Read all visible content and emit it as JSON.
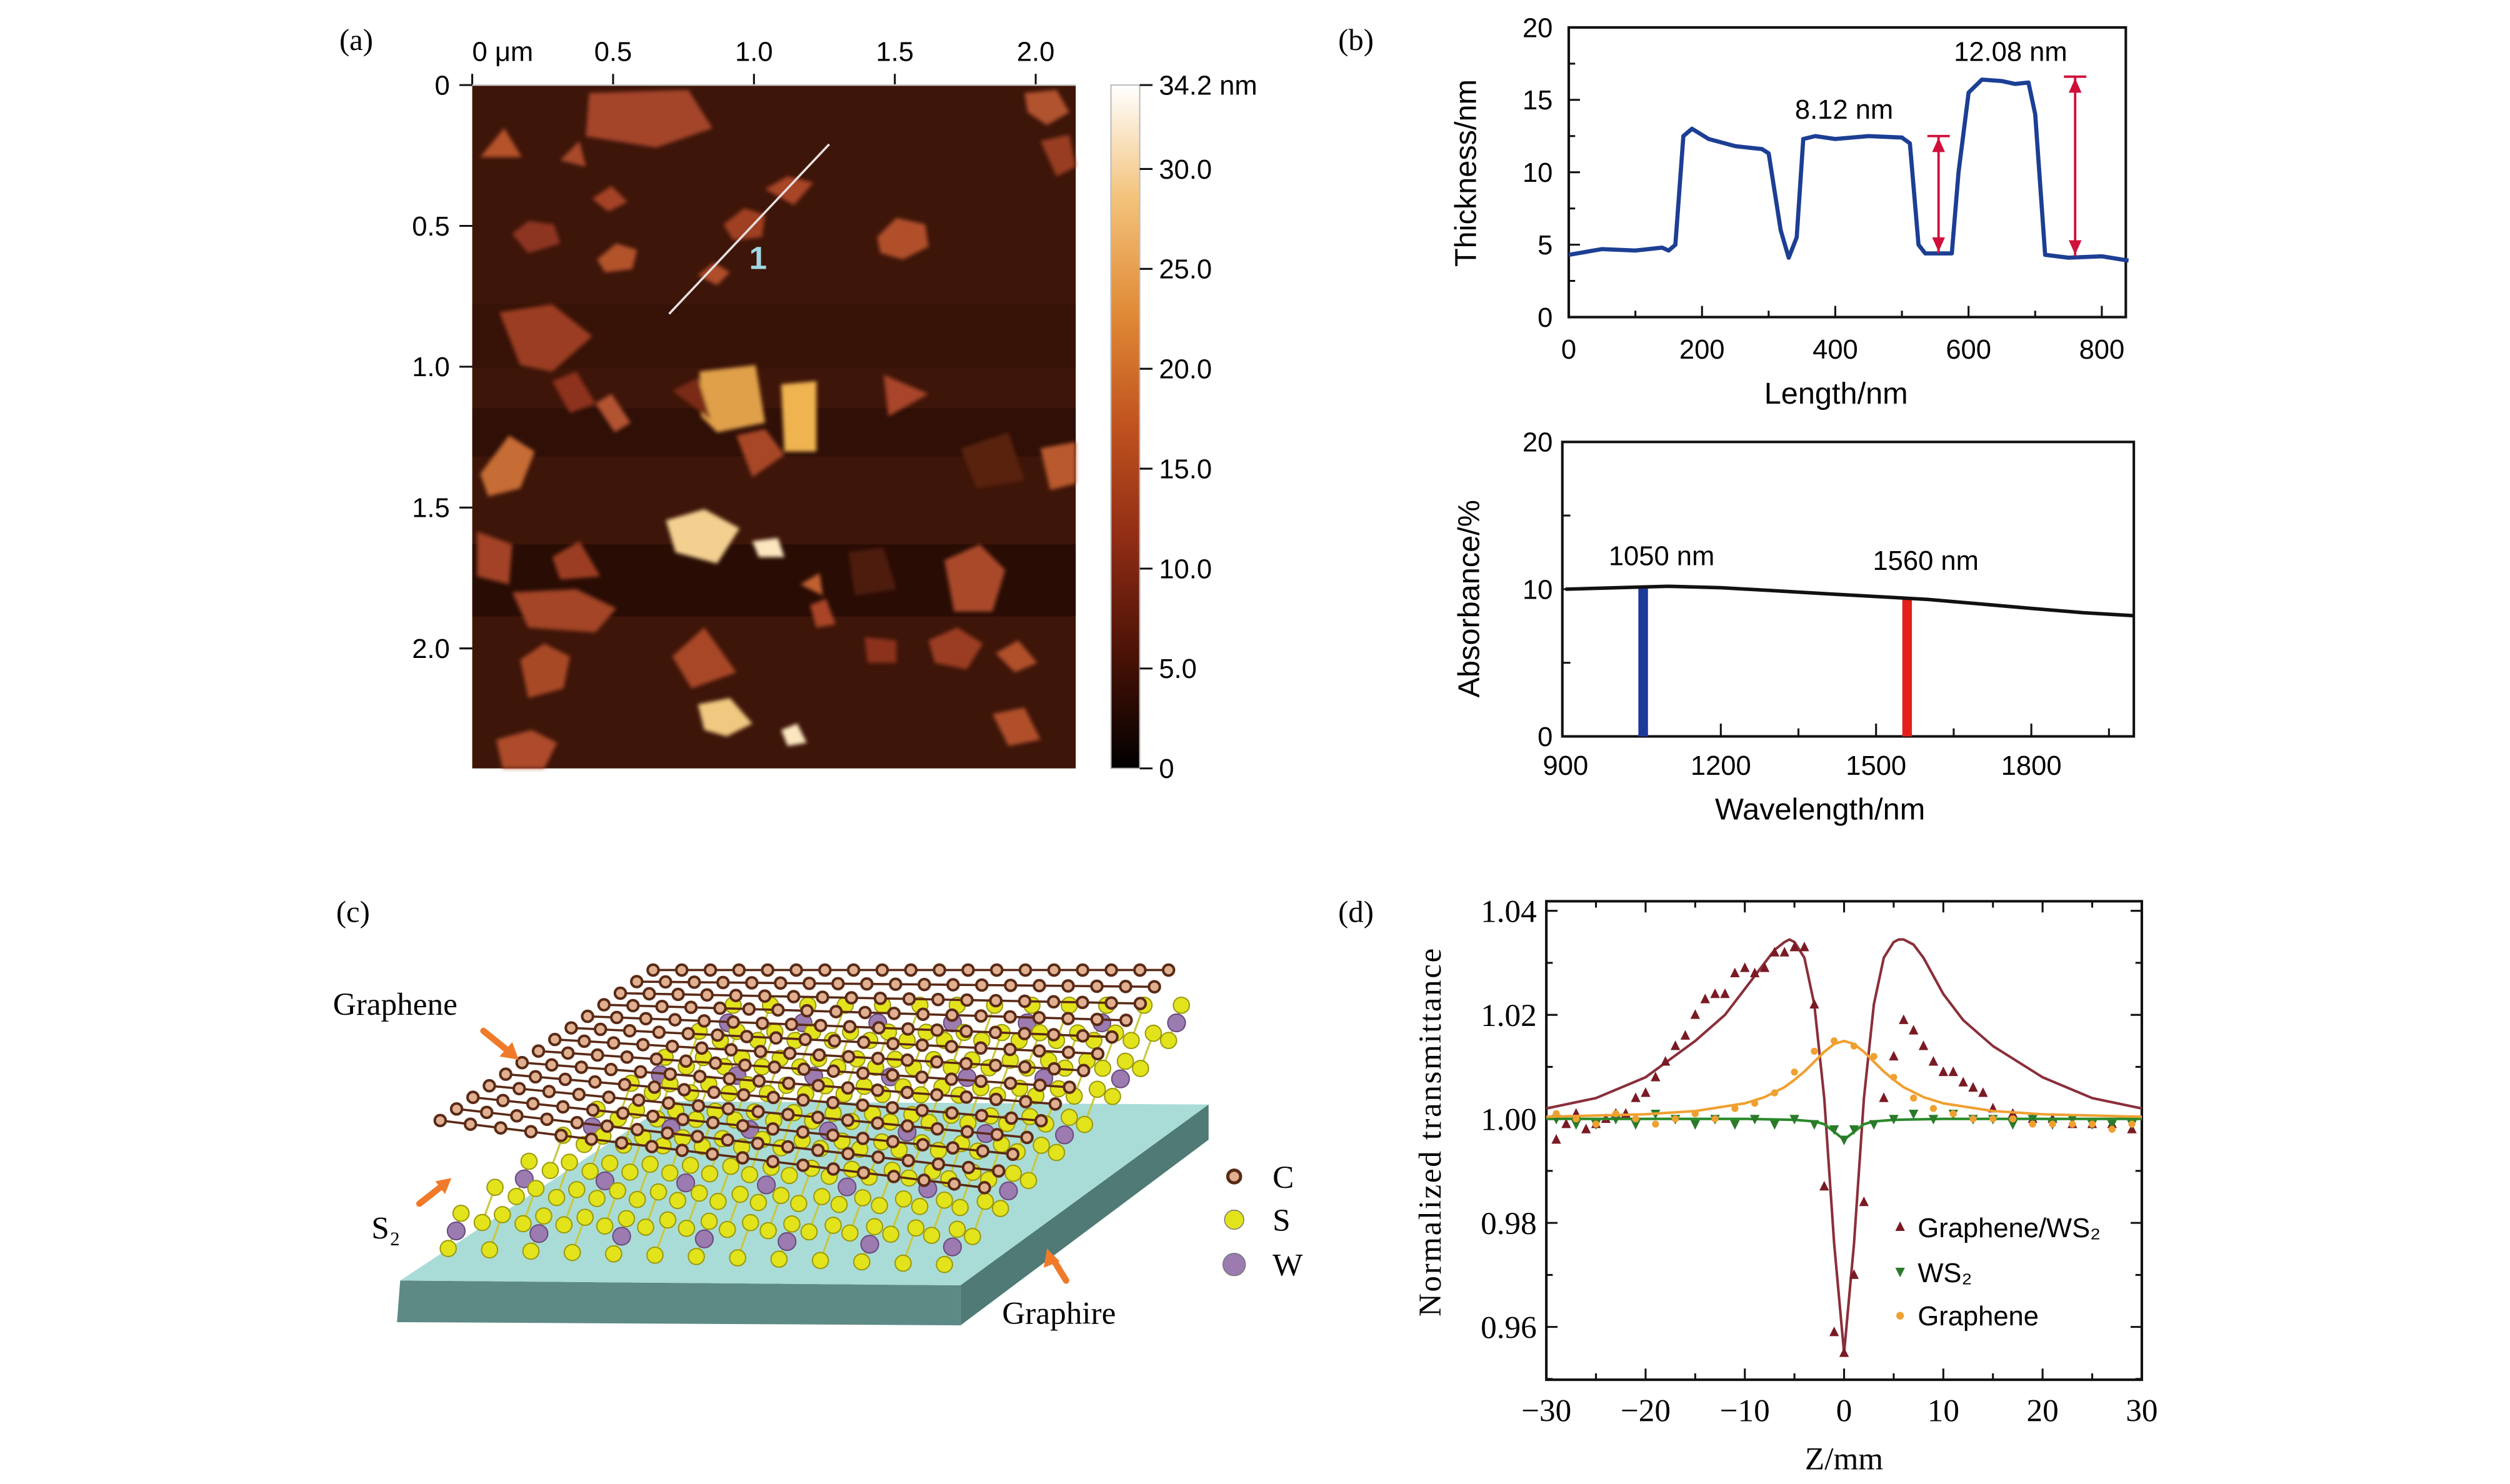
{
  "panels": {
    "a": {
      "label": "(a)",
      "x_ticks": [
        "0 μm",
        "0.5",
        "1.0",
        "1.5",
        "2.0"
      ],
      "y_ticks": [
        "0",
        "0.5",
        "1.0",
        "1.5",
        "2.0"
      ],
      "line_marker": "1",
      "colorbar": {
        "ticks": [
          "34.2 nm",
          "30.0",
          "25.0",
          "20.0",
          "15.0",
          "10.0",
          "5.0",
          "0"
        ],
        "colors": [
          "#000000",
          "#4a1206",
          "#8f2c14",
          "#c0521f",
          "#e08a36",
          "#f3c27a",
          "#ffffff"
        ]
      }
    },
    "b": {
      "label": "(b)"
    },
    "c": {
      "label": "(c)",
      "labels": {
        "graphene": "Graphene",
        "s2": "S₂",
        "substrate": "Graphire"
      },
      "legend": [
        {
          "symbol": "C",
          "color": "#5a2a16"
        },
        {
          "symbol": "S",
          "color": "#e3e31c"
        },
        {
          "symbol": "W",
          "color": "#9b7bb0"
        }
      ],
      "colors": {
        "substrate_top": "#a9dcd6",
        "substrate_side": "#5e8a86",
        "arrow": "#f07a2a"
      }
    },
    "d": {
      "label": "(d)"
    }
  },
  "chart_data": [
    {
      "type": "line",
      "panel": "b-top",
      "xlabel": "Length/nm",
      "ylabel": "Thickness/nm",
      "xlim": [
        0,
        840
      ],
      "ylim": [
        0,
        20
      ],
      "x_ticks": [
        0,
        200,
        400,
        600,
        800
      ],
      "y_ticks": [
        0,
        5,
        10,
        15,
        20
      ],
      "line_color": "#1c3f94",
      "x": [
        0,
        50,
        100,
        140,
        150,
        160,
        172,
        185,
        210,
        250,
        290,
        300,
        318,
        330,
        342,
        352,
        370,
        400,
        450,
        500,
        512,
        525,
        535,
        575,
        585,
        600,
        620,
        650,
        670,
        690,
        700,
        715,
        750,
        800,
        840
      ],
      "y": [
        4.3,
        4.7,
        4.6,
        4.8,
        4.6,
        5.0,
        12.5,
        13.0,
        12.3,
        11.8,
        11.6,
        11.3,
        6.0,
        4.1,
        5.5,
        12.3,
        12.5,
        12.3,
        12.5,
        12.4,
        12.0,
        5.0,
        4.4,
        4.4,
        10.0,
        15.5,
        16.4,
        16.3,
        16.1,
        16.2,
        14.0,
        4.3,
        4.1,
        4.2,
        3.9
      ],
      "annotations": [
        {
          "text": "8.12 nm",
          "x": 555,
          "y_from": 4.4,
          "y_to": 12.5
        },
        {
          "text": "12.08 nm",
          "x": 760,
          "y_from": 4.2,
          "y_to": 16.6
        }
      ],
      "annotation_color": "#d0103a"
    },
    {
      "type": "line",
      "panel": "b-bottom",
      "xlabel": "Wavelength/nm",
      "ylabel": "Absorbance/%",
      "xlim": [
        900,
        2000
      ],
      "ylim": [
        0,
        20
      ],
      "x_ticks": [
        900,
        1200,
        1500,
        1800
      ],
      "y_ticks": [
        0,
        10,
        20
      ],
      "x": [
        900,
        1000,
        1100,
        1200,
        1300,
        1400,
        1500,
        1600,
        1700,
        1800,
        1900,
        2000
      ],
      "y": [
        10.0,
        10.1,
        10.2,
        10.1,
        9.9,
        9.7,
        9.5,
        9.3,
        9.0,
        8.7,
        8.4,
        8.2
      ],
      "markers": [
        {
          "text": "1050 nm",
          "x": 1050,
          "y": 10.2,
          "color": "#1b3a9a"
        },
        {
          "text": "1560 nm",
          "x": 1560,
          "y": 9.4,
          "color": "#e3201b"
        }
      ]
    },
    {
      "type": "scatter",
      "panel": "d",
      "xlabel": "Z/mm",
      "ylabel": "Normalized transmittance",
      "xlim": [
        -30,
        30
      ],
      "ylim": [
        0.95,
        1.042
      ],
      "x_ticks": [
        -30,
        -20,
        -10,
        0,
        10,
        20,
        30
      ],
      "x_tick_labels": [
        "−30",
        "−20",
        "−10",
        "0",
        "10",
        "20",
        "30"
      ],
      "y_ticks": [
        0.96,
        0.98,
        1.0,
        1.02,
        1.04
      ],
      "y_tick_labels": [
        "0.96",
        "0.98",
        "1.00",
        "1.02",
        "1.04"
      ],
      "legend_position": "bottom-right",
      "series": [
        {
          "name": "Graphene/WS₂",
          "marker": "triangle-up",
          "color": "#7a1a24",
          "x": [
            -29,
            -28,
            -27,
            -26,
            -25,
            -24,
            -23,
            -22,
            -21,
            -20,
            -19,
            -18,
            -17,
            -16,
            -15,
            -14,
            -13,
            -12,
            -11,
            -10,
            -9,
            -8,
            -7,
            -6,
            -5,
            -4,
            -3,
            -2,
            -1,
            0,
            1,
            2,
            4,
            5,
            6,
            7,
            8,
            9,
            10,
            11,
            12,
            13,
            14,
            15,
            17,
            19,
            21,
            23,
            25,
            27,
            29
          ],
          "y": [
            0.996,
            0.999,
            1.001,
            0.998,
            0.999,
            1.0,
            1.001,
            1.001,
            1.004,
            1.005,
            1.008,
            1.011,
            1.014,
            1.016,
            1.02,
            1.023,
            1.024,
            1.024,
            1.028,
            1.029,
            1.028,
            1.029,
            1.032,
            1.032,
            1.033,
            1.033,
            1.022,
            0.987,
            0.959,
            0.955,
            0.97,
            0.984,
            1.004,
            1.012,
            1.019,
            1.017,
            1.014,
            1.011,
            1.009,
            1.009,
            1.007,
            1.006,
            1.005,
            1.002,
            1.001,
            1.0,
            1.0,
            0.999,
            0.999,
            0.999,
            0.998
          ],
          "fit_x": [
            -30,
            -25,
            -20,
            -15,
            -12,
            -10,
            -8,
            -7,
            -6,
            -5.5,
            -5,
            -4,
            -3,
            -2,
            -1,
            0,
            1,
            2,
            3,
            4,
            5,
            5.5,
            6,
            7,
            8,
            10,
            12,
            15,
            20,
            25,
            30
          ],
          "fit_y": [
            1.002,
            1.004,
            1.008,
            1.015,
            1.02,
            1.025,
            1.03,
            1.0325,
            1.034,
            1.0345,
            1.034,
            1.031,
            1.022,
            1.004,
            0.976,
            0.955,
            0.976,
            1.004,
            1.022,
            1.031,
            1.034,
            1.0345,
            1.0345,
            1.0335,
            1.031,
            1.024,
            1.019,
            1.014,
            1.008,
            1.004,
            1.002
          ],
          "fit_color": "#8a2f3a"
        },
        {
          "name": "WS₂",
          "marker": "triangle-down",
          "color": "#2a7a2a",
          "x": [
            -29,
            -27,
            -25,
            -23,
            -21,
            -19,
            -17,
            -15,
            -13,
            -11,
            -9,
            -7,
            -5,
            -3,
            -1,
            0,
            1,
            3,
            5,
            7,
            9,
            11,
            13,
            15,
            17,
            19,
            21,
            23,
            25,
            27,
            29
          ],
          "y": [
            1.0,
            0.999,
            0.999,
            1.0,
            0.999,
            1.001,
            1.0,
            0.999,
            1.0,
            0.999,
            1.0,
            0.999,
            1.0,
            0.999,
            0.998,
            0.996,
            0.998,
            0.999,
            1.0,
            1.001,
            1.0,
            1.001,
            1.0,
            1.0,
            0.999,
            1.0,
            0.999,
            1.0,
            0.999,
            0.999,
            0.999
          ],
          "fit_x": [
            -30,
            -10,
            -5,
            -3,
            -2,
            -1,
            0,
            1,
            2,
            3,
            5,
            10,
            30
          ],
          "fit_y": [
            1.0,
            1.0,
            0.9998,
            0.9995,
            0.999,
            0.9975,
            0.996,
            0.9975,
            0.999,
            0.9995,
            0.9998,
            1.0,
            1.0
          ],
          "fit_color": "#2a8a2a"
        },
        {
          "name": "Graphene",
          "marker": "circle",
          "color": "#f0a030",
          "x": [
            -29,
            -27,
            -25,
            -23,
            -21,
            -19,
            -17,
            -15,
            -13,
            -11,
            -9,
            -7,
            -5,
            -3,
            -1,
            1,
            3,
            5,
            7,
            9,
            11,
            13,
            15,
            17,
            19,
            21,
            23,
            25,
            27,
            29
          ],
          "y": [
            1.001,
            1.0,
            0.999,
            1.001,
            1.0,
            0.999,
            1.0,
            1.001,
            1.0,
            1.002,
            1.003,
            1.005,
            1.009,
            1.013,
            1.015,
            1.014,
            1.012,
            1.008,
            1.004,
            1.002,
            1.001,
            1.0,
            1.0,
            1.0,
            0.999,
            0.999,
            0.999,
            0.999,
            0.998,
            0.999
          ],
          "fit_x": [
            -30,
            -20,
            -15,
            -10,
            -8,
            -6,
            -5,
            -4,
            -3,
            -2,
            -1,
            0,
            1,
            2,
            3,
            4,
            5,
            6,
            8,
            10,
            15,
            20,
            30
          ],
          "fit_y": [
            1.0004,
            1.0009,
            1.0015,
            1.003,
            1.0042,
            1.0061,
            1.0075,
            1.0091,
            1.011,
            1.0129,
            1.0144,
            1.015,
            1.0144,
            1.0129,
            1.011,
            1.0091,
            1.0075,
            1.0061,
            1.0042,
            1.003,
            1.0015,
            1.0009,
            1.0004
          ],
          "fit_color": "#f0a030"
        }
      ]
    }
  ]
}
